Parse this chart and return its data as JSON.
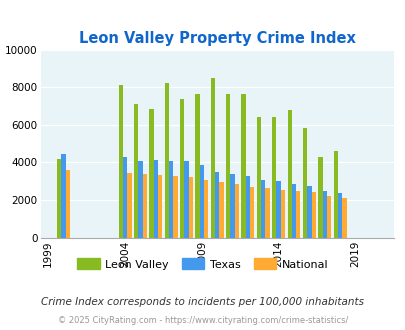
{
  "title": "Leon Valley Property Crime Index",
  "subtitle": "Crime Index corresponds to incidents per 100,000 inhabitants",
  "footer": "© 2025 CityRating.com - https://www.cityrating.com/crime-statistics/",
  "years": [
    2000,
    2004,
    2005,
    2006,
    2007,
    2008,
    2009,
    2010,
    2011,
    2012,
    2013,
    2014,
    2015,
    2016,
    2017,
    2018,
    2019,
    2020
  ],
  "leon_valley": [
    4200,
    8100,
    7100,
    6850,
    8200,
    7350,
    7650,
    8500,
    7650,
    7650,
    6400,
    6400,
    6800,
    5850,
    4300,
    4600,
    0,
    0
  ],
  "texas": [
    4450,
    4300,
    4050,
    4150,
    4050,
    4050,
    3850,
    3500,
    3400,
    3300,
    3050,
    3000,
    2850,
    2750,
    2500,
    2350,
    0,
    0
  ],
  "national": [
    3600,
    3450,
    3400,
    3350,
    3300,
    3200,
    3050,
    2950,
    2850,
    2700,
    2650,
    2550,
    2500,
    2450,
    2200,
    2100,
    0,
    0
  ],
  "leon_valley_color": "#88bb22",
  "texas_color": "#4499ee",
  "national_color": "#ffaa33",
  "title_color": "#1166cc",
  "background_color": "#e8f4f8",
  "ylim": [
    0,
    10000
  ],
  "yticks": [
    0,
    2000,
    4000,
    6000,
    8000,
    10000
  ],
  "xtick_positions": [
    1999,
    2004,
    2009,
    2014,
    2019
  ],
  "xtick_labels": [
    "1999",
    "2004",
    "2009",
    "2014",
    "2019"
  ],
  "xlim": [
    1998.5,
    2021.5
  ]
}
